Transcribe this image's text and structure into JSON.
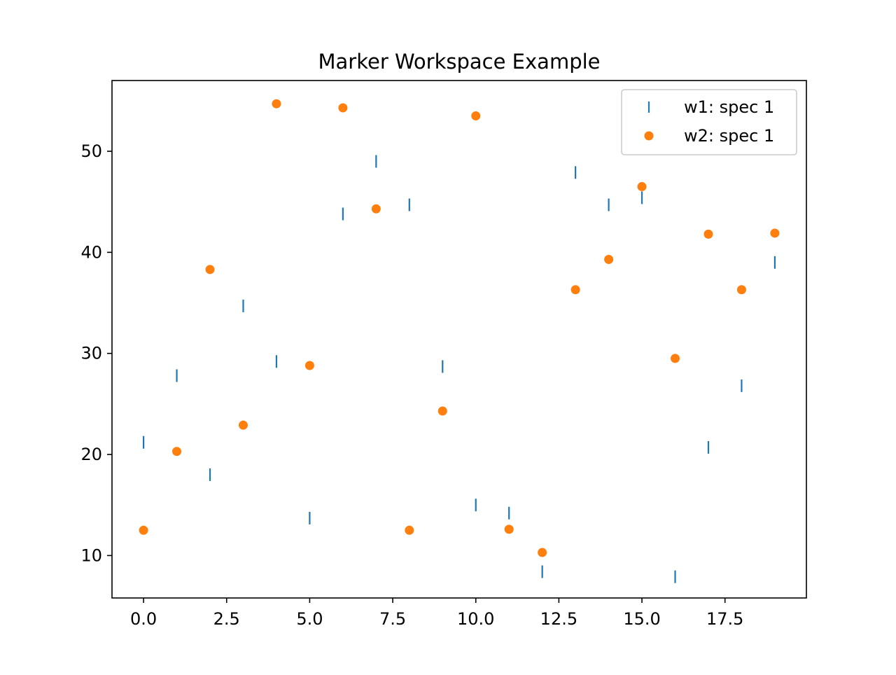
{
  "chart_data": {
    "type": "scatter",
    "title": "Marker Workspace Example",
    "xlabel": "",
    "ylabel": "",
    "xlim": [
      -0.95,
      19.95
    ],
    "ylim": [
      5.8,
      57.0
    ],
    "x_ticks": [
      0.0,
      2.5,
      5.0,
      7.5,
      10.0,
      12.5,
      15.0,
      17.5
    ],
    "x_tick_labels": [
      "0.0",
      "2.5",
      "5.0",
      "7.5",
      "10.0",
      "12.5",
      "15.0",
      "17.5"
    ],
    "y_ticks": [
      10,
      20,
      30,
      40,
      50
    ],
    "y_tick_labels": [
      "10",
      "20",
      "30",
      "40",
      "50"
    ],
    "grid": false,
    "legend_position": "top-right",
    "series": [
      {
        "name": "w1: spec 1",
        "marker": "vline",
        "color": "#1f77b4",
        "x": [
          0,
          1,
          2,
          3,
          4,
          5,
          6,
          7,
          8,
          9,
          10,
          11,
          12,
          13,
          14,
          15,
          16,
          17,
          18,
          19
        ],
        "y": [
          21.2,
          27.8,
          18.0,
          34.7,
          29.2,
          13.7,
          43.8,
          49.0,
          44.7,
          28.7,
          15.0,
          14.2,
          8.4,
          47.9,
          44.7,
          45.4,
          7.9,
          20.7,
          26.8,
          39.0
        ]
      },
      {
        "name": "w2: spec 1",
        "marker": "circle",
        "color": "#ff7f0e",
        "x": [
          0,
          1,
          2,
          3,
          4,
          5,
          6,
          7,
          8,
          9,
          10,
          11,
          12,
          13,
          14,
          15,
          16,
          17,
          18,
          19
        ],
        "y": [
          12.5,
          20.3,
          38.3,
          22.9,
          54.7,
          28.8,
          54.3,
          44.3,
          12.5,
          24.3,
          53.5,
          12.6,
          10.3,
          36.3,
          39.3,
          46.5,
          29.5,
          41.8,
          36.3,
          41.9
        ]
      }
    ]
  }
}
